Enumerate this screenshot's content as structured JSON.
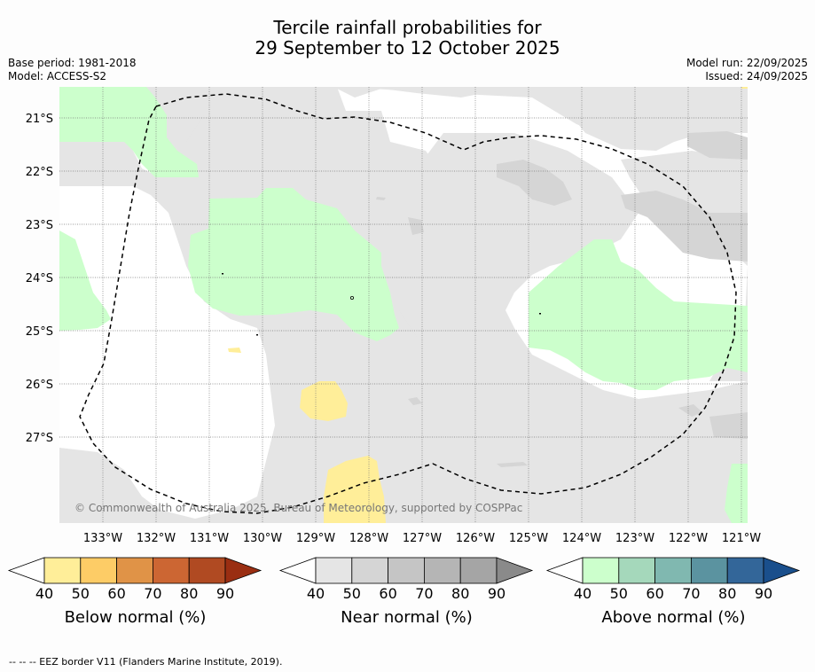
{
  "title_line1": "Tercile rainfall probabilities for",
  "title_line2": "29 September to 12 October 2025",
  "base_period": "Base period: 1981-2018",
  "model": "Model: ACCESS-S2",
  "model_run": "Model run: 22/09/2025",
  "issued": "Issued: 24/09/2025",
  "copyright": "© Commonwealth of Australia 2025, Bureau of Meteorology, supported by COSPPac",
  "lon_labels": [
    "133°W",
    "132°W",
    "131°W",
    "130°W",
    "129°W",
    "128°W",
    "127°W",
    "126°W",
    "125°W",
    "124°W",
    "123°W",
    "122°W",
    "121°W"
  ],
  "lat_labels": [
    "21°S",
    "22°S",
    "23°S",
    "24°S",
    "25°S",
    "26°S",
    "27°S"
  ],
  "colorbars": [
    {
      "label": "Below normal (%)",
      "ticks": [
        "40",
        "50",
        "60",
        "70",
        "80",
        "90"
      ],
      "colors": [
        "#ffffff",
        "#ffee99",
        "#fdcc66",
        "#e09347",
        "#cc6633",
        "#b04a22",
        "#9a2e12"
      ]
    },
    {
      "label": "Near normal (%)",
      "ticks": [
        "40",
        "50",
        "60",
        "70",
        "80",
        "90"
      ],
      "colors": [
        "#ffffff",
        "#e5e5e5",
        "#d5d5d5",
        "#c5c5c5",
        "#b5b5b5",
        "#a5a5a5",
        "#8a8a8a"
      ]
    },
    {
      "label": "Above normal (%)",
      "ticks": [
        "40",
        "50",
        "60",
        "70",
        "80",
        "90"
      ],
      "colors": [
        "#ffffff",
        "#ccffcc",
        "#a5d8bb",
        "#80b8b0",
        "#5b93a0",
        "#336699",
        "#1a4f8c"
      ]
    }
  ],
  "footer": "--  --  -- EEZ border V11 (Flanders Marine Institute, 2019)."
}
